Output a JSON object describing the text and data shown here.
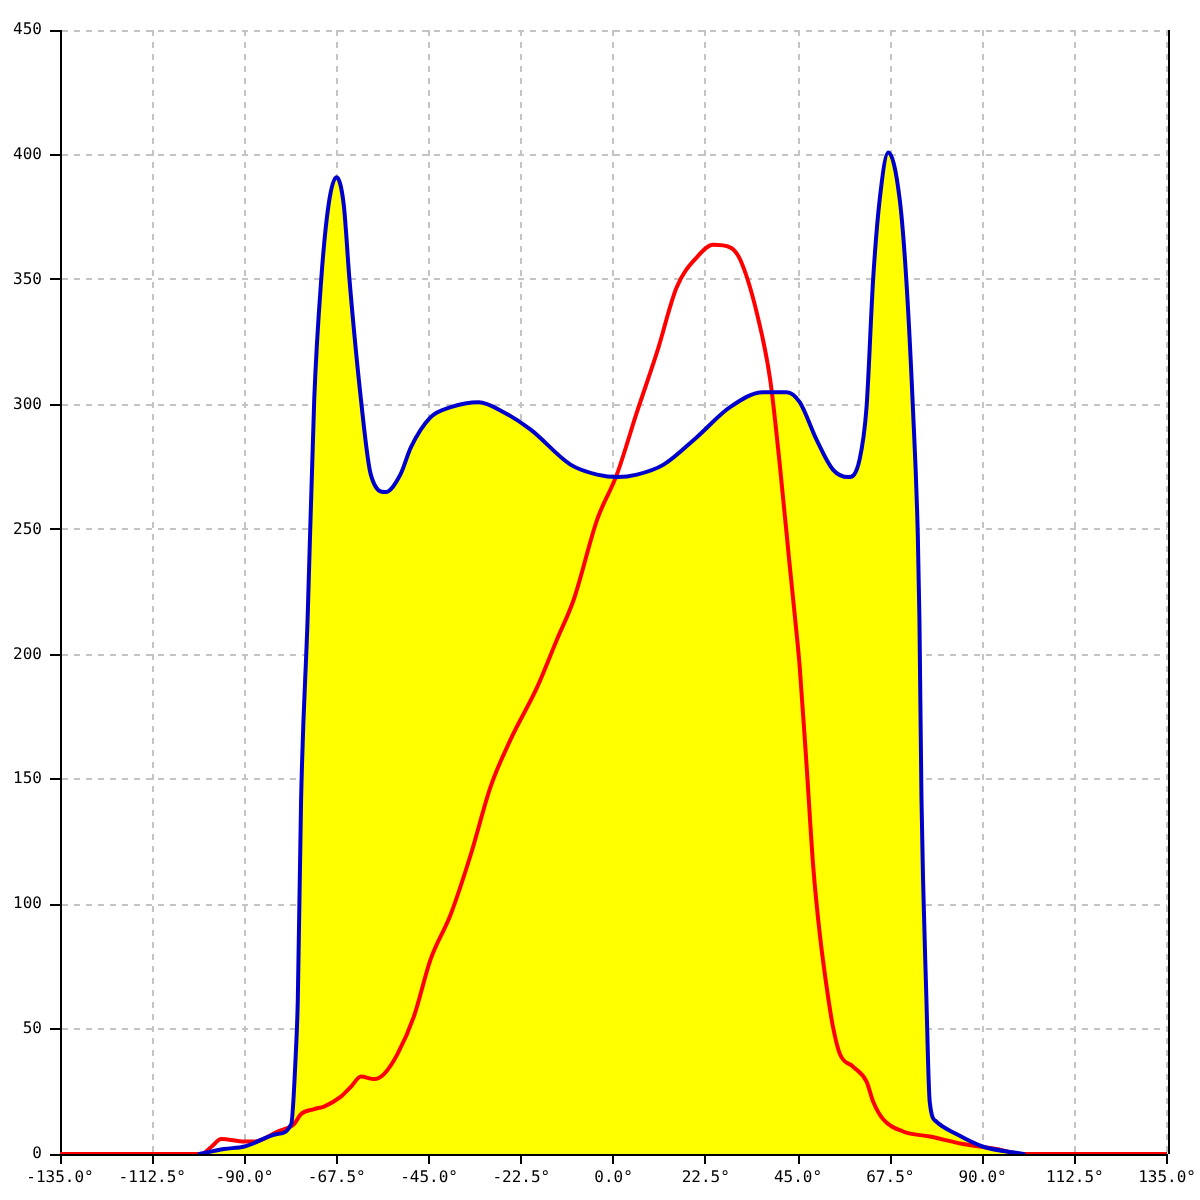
{
  "chart_data": {
    "type": "line",
    "xlim": [
      -135,
      135
    ],
    "ylim": [
      0,
      450
    ],
    "xticks": [
      {
        "value": -135,
        "label": "-135.0°"
      },
      {
        "value": -112.5,
        "label": "-112.5°"
      },
      {
        "value": -90,
        "label": "-90.0°"
      },
      {
        "value": -67.5,
        "label": "-67.5°"
      },
      {
        "value": -45,
        "label": "-45.0°"
      },
      {
        "value": -22.5,
        "label": "-22.5°"
      },
      {
        "value": 0,
        "label": "0.0°"
      },
      {
        "value": 22.5,
        "label": "22.5°"
      },
      {
        "value": 45,
        "label": "45.0°"
      },
      {
        "value": 67.5,
        "label": "67.5°"
      },
      {
        "value": 90,
        "label": "90.0°"
      },
      {
        "value": 112.5,
        "label": "112.5°"
      },
      {
        "value": 135,
        "label": "135.0°"
      }
    ],
    "yticks": [
      0,
      50,
      100,
      150,
      200,
      250,
      300,
      350,
      400,
      450
    ],
    "grid": true,
    "marker": "none",
    "series": [
      {
        "type": "area",
        "color": "#ffff00",
        "x": [
          -101,
          -95,
          -90,
          -82,
          -78.6,
          -77.5,
          -77,
          -76.2,
          -74.6,
          -73,
          -71.3,
          -69.5,
          -67.6,
          -65.8,
          -64.4,
          -61.6,
          -59.2,
          -55.6,
          -52,
          -49.4,
          -44.6,
          -39.7,
          -32.9,
          -26.8,
          -20.2,
          -10.5,
          -4,
          1,
          5.7,
          12.2,
          20.3,
          28.4,
          36.5,
          42.2,
          45.4,
          49.5,
          53.5,
          57.3,
          60,
          61.7,
          63.3,
          64.9,
          67,
          69.8,
          71.4,
          73,
          74.2,
          74.6,
          75.1,
          76.3,
          77.1,
          78.7,
          83.6,
          90,
          100
        ],
        "values": [
          0,
          2,
          3,
          8,
          12,
          40,
          62,
          142,
          215,
          302,
          350,
          380,
          391,
          380,
          350,
          302,
          272,
          265,
          272,
          283,
          295,
          299,
          301,
          297,
          290,
          276,
          272,
          271,
          272,
          276,
          287,
          299,
          305,
          305,
          301,
          286,
          274,
          271,
          278,
          299,
          350,
          382,
          401,
          382,
          350,
          299,
          248,
          214,
          142,
          62,
          21,
          13,
          8,
          3,
          0
        ]
      },
      {
        "color": "#ff0000",
        "x": [
          -135,
          -100.5,
          -98,
          -95.7,
          -90,
          -87.6,
          -81.9,
          -77.9,
          -76.2,
          -73,
          -70.6,
          -66.5,
          -64,
          -61.6,
          -58.4,
          -56,
          -52.7,
          -48.7,
          -44.6,
          -39.7,
          -34.8,
          -30,
          -25.1,
          -18.6,
          -13.8,
          -9.7,
          -4,
          0.8,
          5.7,
          10.6,
          15.4,
          20.3,
          24.3,
          28.4,
          30.9,
          34.9,
          38.2,
          40.6,
          43,
          44.3,
          45.4,
          47.1,
          48.7,
          50.3,
          52.4,
          53.5,
          55.2,
          58.4,
          61.7,
          63.3,
          65.7,
          70.6,
          77.1,
          85.2,
          93.3,
          99.8,
          135
        ],
        "values": [
          0,
          0,
          3,
          6,
          5,
          5,
          9,
          12,
          16,
          18,
          19,
          23,
          27,
          31,
          30,
          32,
          40,
          55,
          78,
          96,
          120,
          147,
          166,
          187,
          206,
          222,
          254,
          272,
          297,
          321,
          347,
          359,
          364,
          363,
          358,
          337,
          310,
          275,
          235,
          214,
          195,
          155,
          115,
          88,
          62,
          51,
          40,
          35,
          29,
          21,
          14,
          9,
          7,
          4,
          2,
          0,
          0
        ]
      }
    ]
  }
}
